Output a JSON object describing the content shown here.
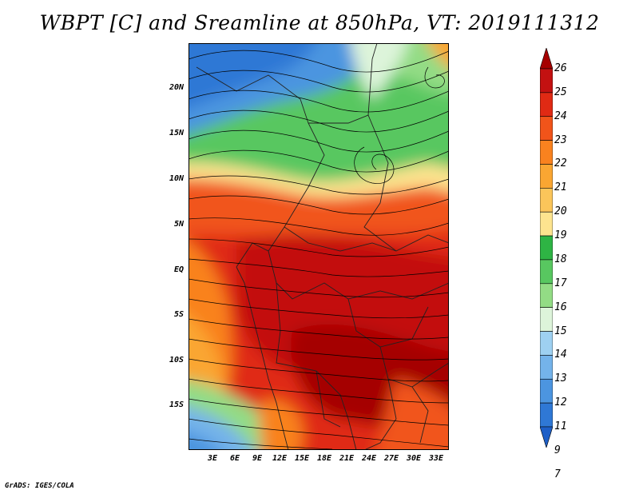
{
  "title": "WBPT [C] and Sreamline at 850hPa, VT: 2019111312",
  "footer": "GrADS: IGES/COLA",
  "map": {
    "lat_labels": [
      "20N",
      "15N",
      "10N",
      "5N",
      "EQ",
      "5S",
      "10S",
      "15S"
    ],
    "lon_labels": [
      "3E",
      "6E",
      "9E",
      "12E",
      "15E",
      "18E",
      "21E",
      "24E",
      "27E",
      "30E",
      "33E"
    ]
  },
  "colorbar": {
    "labels": [
      "26",
      "25",
      "24",
      "23",
      "22",
      "21",
      "20",
      "19",
      "18",
      "17",
      "16",
      "15",
      "14",
      "13",
      "12",
      "11",
      "9",
      "7"
    ],
    "colors": [
      "#a50000",
      "#c31111",
      "#e02a14",
      "#f1541a",
      "#f9821f",
      "#faa632",
      "#fbc55a",
      "#fde48f",
      "#2eb444",
      "#58c760",
      "#93dc85",
      "#ddf4da",
      "#9ed0f1",
      "#74b3ea",
      "#4c95e0",
      "#2f78d5",
      "#1e5fc7"
    ]
  }
}
